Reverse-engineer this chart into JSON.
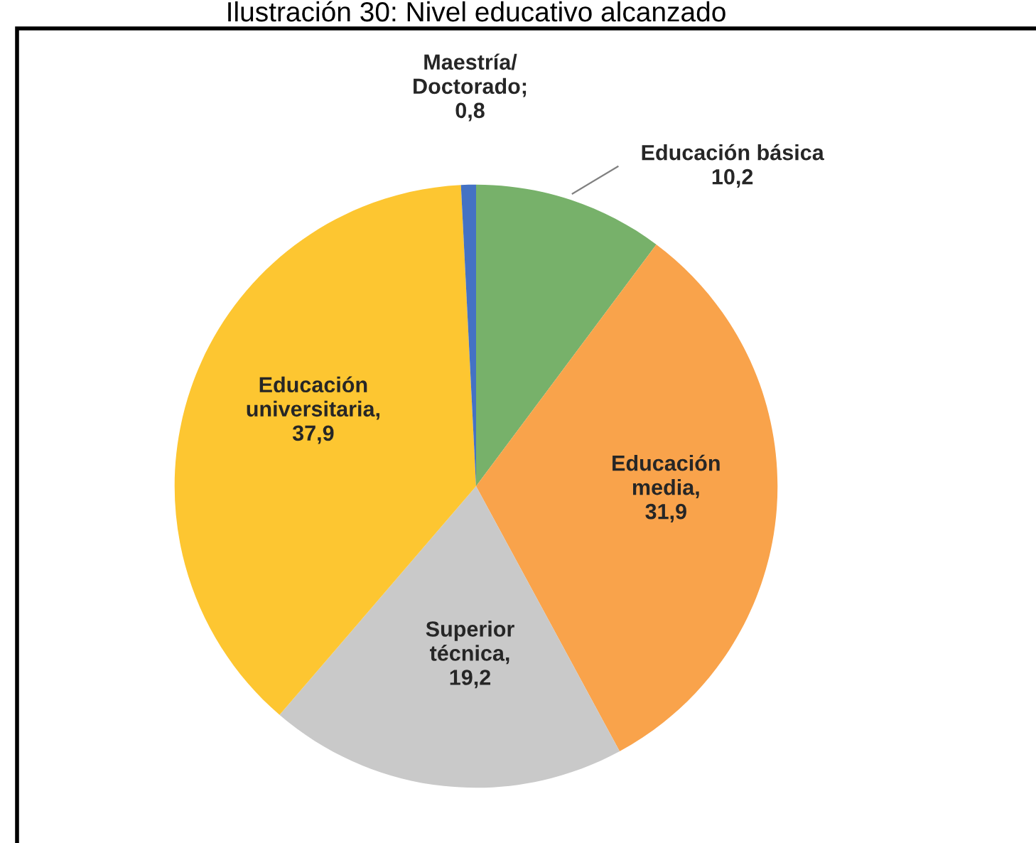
{
  "chart_data": {
    "type": "pie",
    "title": "Ilustración 30: Nivel educativo alcanzado",
    "categories": [
      "Educación básica\n10,2",
      "Educación\nmedia,\n31,9",
      "Superior\ntécnica,\n19,2",
      "Educación\nuniversitaria,\n37,9",
      "Maestría/\nDoctorado;\n0,8"
    ],
    "values": [
      10.2,
      31.9,
      19.2,
      37.9,
      0.8
    ],
    "colors": [
      "#77b16a",
      "#f9a34b",
      "#c9c9c9",
      "#fdc631",
      "#4472c4"
    ]
  }
}
